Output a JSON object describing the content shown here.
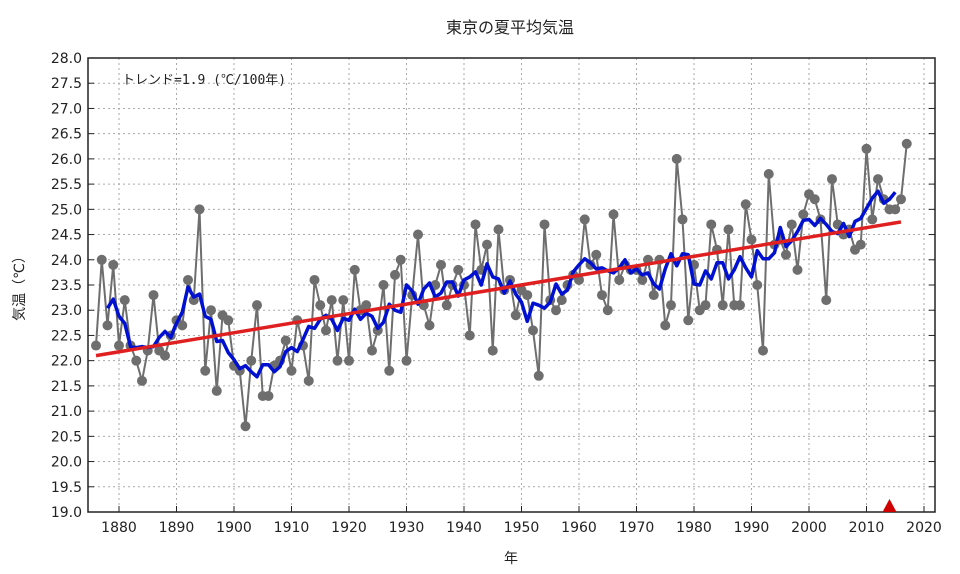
{
  "chart_data": {
    "type": "line",
    "title": "東京の夏平均気温",
    "xlabel": "年",
    "ylabel": "気温（℃）",
    "annotation": "トレンド=1.9 (℃/100年)",
    "xlim": [
      1875,
      2022
    ],
    "ylim": [
      19.0,
      28.0
    ],
    "grid": true,
    "x_ticks": [
      "1880",
      "1890",
      "1900",
      "1910",
      "1920",
      "1930",
      "1940",
      "1950",
      "1960",
      "1970",
      "1980",
      "1990",
      "2000",
      "2010",
      "2020"
    ],
    "y_ticks": [
      "19.0",
      "19.5",
      "20.0",
      "20.5",
      "21.0",
      "21.5",
      "22.0",
      "22.5",
      "23.0",
      "23.5",
      "24.0",
      "24.5",
      "25.0",
      "25.5",
      "26.0",
      "26.5",
      "27.0",
      "27.5",
      "28.0"
    ],
    "colors": {
      "annual": "#6e6e6e",
      "moving_average": "#0010d0",
      "trend": "#e02020",
      "marker": "#d00000"
    },
    "x_start": 1876,
    "values": [
      22.3,
      24.0,
      22.7,
      23.9,
      22.3,
      23.2,
      22.3,
      22.0,
      21.6,
      22.2,
      23.3,
      22.2,
      22.1,
      22.5,
      22.8,
      22.7,
      23.6,
      23.2,
      25.0,
      21.8,
      23.0,
      21.4,
      22.9,
      22.8,
      21.9,
      21.8,
      20.7,
      22.0,
      23.1,
      21.3,
      21.3,
      21.9,
      22.0,
      22.4,
      21.8,
      22.8,
      22.3,
      21.6,
      23.6,
      23.1,
      22.6,
      23.2,
      22.0,
      23.2,
      22.0,
      23.8,
      23.0,
      23.1,
      22.2,
      22.6,
      23.5,
      21.8,
      23.7,
      24.0,
      22.0,
      23.3,
      24.5,
      23.1,
      22.7,
      23.5,
      23.9,
      23.1,
      23.5,
      23.8,
      23.5,
      22.5,
      24.7,
      23.8,
      24.3,
      22.2,
      24.6,
      23.4,
      23.6,
      22.9,
      23.4,
      23.3,
      22.6,
      21.7,
      24.7,
      23.2,
      23.0,
      23.2,
      23.5,
      23.7,
      23.6,
      24.8,
      23.9,
      24.1,
      23.3,
      23.0,
      24.9,
      23.6,
      23.9,
      23.8,
      23.8,
      23.6,
      24.0,
      23.3,
      24.0,
      22.7,
      23.1,
      26.0,
      24.8,
      22.8,
      23.9,
      23.0,
      23.1,
      24.7,
      24.2,
      23.1,
      24.6,
      23.1,
      23.1,
      25.1,
      24.4,
      23.5,
      22.2,
      25.7,
      24.3,
      24.4,
      24.1,
      24.7,
      23.8,
      24.9,
      25.3,
      25.2,
      24.8,
      23.2,
      25.6,
      24.7,
      24.5,
      24.6,
      24.2,
      24.3,
      26.2,
      24.8,
      25.6,
      25.2,
      25.0,
      25.0,
      25.2,
      26.3
    ],
    "moving_average_window": 5,
    "trend": {
      "rate_per_100yr": 1.9,
      "start": [
        1876,
        22.1
      ],
      "end": [
        2016,
        24.75
      ]
    },
    "marker": {
      "type": "triangle",
      "x": 2014
    }
  }
}
